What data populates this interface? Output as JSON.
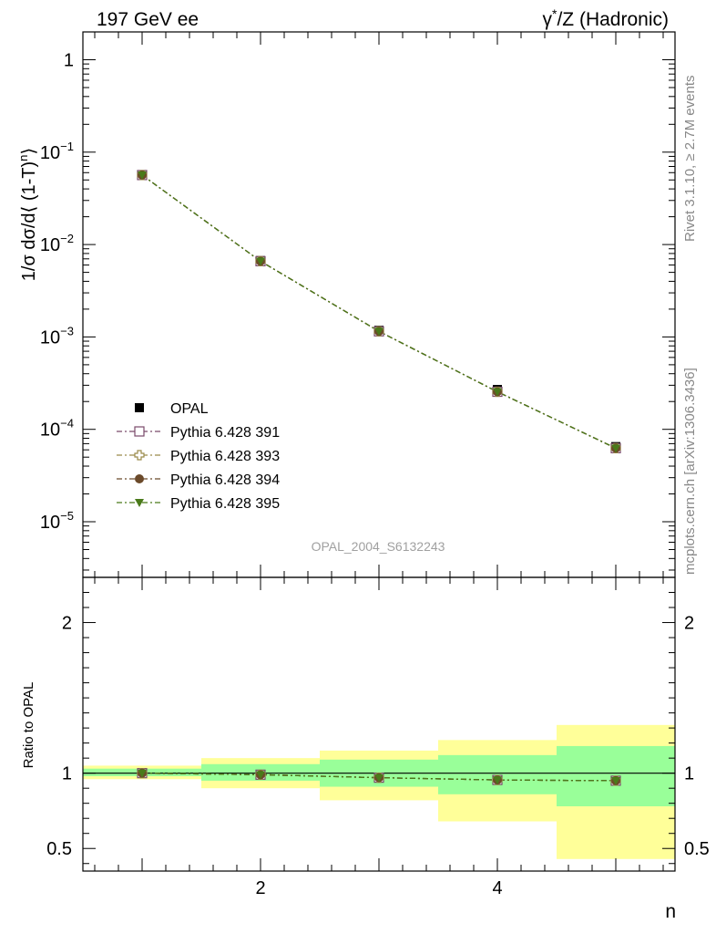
{
  "header": {
    "left": "197 GeV ee",
    "right_sup": "*",
    "right_pre": "γ",
    "right_post": "/Z (Hadronic)"
  },
  "side_text": {
    "rivet": "Rivet 3.1.10, ≥ 2.7M events",
    "mcplots": "mcplots.cern.ch [arXiv:1306.3436]"
  },
  "watermark": "OPAL_2004_S6132243",
  "chart_data": [
    {
      "type": "line",
      "scale": "log",
      "ylabel": "1/σ dσ/d⟨ (1-T)ⁿ⟩",
      "xlabel": "n",
      "xlim": [
        0.5,
        5.5
      ],
      "ylim": [
        2.5e-06,
        2
      ],
      "x": [
        1,
        2,
        3,
        4,
        5
      ],
      "y_ticks": [
        {
          "label": "1",
          "value": 1
        },
        {
          "label": "10",
          "sup": "−1",
          "value": 0.1
        },
        {
          "label": "10",
          "sup": "−2",
          "value": 0.01
        },
        {
          "label": "10",
          "sup": "−3",
          "value": 0.001
        },
        {
          "label": "10",
          "sup": "−4",
          "value": 0.0001
        },
        {
          "label": "10",
          "sup": "−5",
          "value": 1e-05
        }
      ],
      "series": [
        {
          "name": "OPAL",
          "marker": "square-filled",
          "color": "#000000",
          "values": [
            0.056,
            0.0067,
            0.00118,
            0.00027,
            6.5e-05
          ]
        },
        {
          "name": "Pythia 6.428 391",
          "marker": "square-open",
          "color": "#7a4a6a",
          "values": [
            0.0565,
            0.0066,
            0.00115,
            0.000255,
            6.25e-05
          ]
        },
        {
          "name": "Pythia 6.428 393",
          "marker": "cross-open",
          "color": "#9a8a4a",
          "values": [
            0.0565,
            0.0066,
            0.00115,
            0.000255,
            6.25e-05
          ]
        },
        {
          "name": "Pythia 6.428 394",
          "marker": "circle-filled",
          "color": "#6b4a2a",
          "values": [
            0.0565,
            0.0066,
            0.00115,
            0.000255,
            6.25e-05
          ]
        },
        {
          "name": "Pythia 6.428 395",
          "marker": "triangle-down-filled",
          "color": "#4a7a1a",
          "values": [
            0.0565,
            0.0066,
            0.00115,
            0.000255,
            6.25e-05
          ]
        }
      ]
    },
    {
      "type": "line",
      "ylabel": "Ratio to OPAL",
      "xlabel": "n",
      "xlim": [
        0.5,
        5.5
      ],
      "ylim": [
        0.35,
        2.3
      ],
      "y_ticks": [
        0.5,
        1,
        2
      ],
      "x_ticks": [
        2,
        4
      ],
      "x": [
        1,
        2,
        3,
        4,
        5
      ],
      "bands": {
        "stat_sys_outer": [
          [
            0.96,
            1.05
          ],
          [
            0.9,
            1.1
          ],
          [
            0.82,
            1.15
          ],
          [
            0.68,
            1.22
          ],
          [
            0.43,
            1.32
          ]
        ],
        "stat_inner": [
          [
            0.98,
            1.03
          ],
          [
            0.95,
            1.06
          ],
          [
            0.91,
            1.09
          ],
          [
            0.86,
            1.12
          ],
          [
            0.78,
            1.18
          ]
        ]
      },
      "ratio_values": [
        1.01,
        0.99,
        0.97,
        0.955,
        0.95
      ],
      "ratio_display": [
        1.0,
        0.99,
        0.97,
        0.955,
        0.95
      ]
    }
  ]
}
